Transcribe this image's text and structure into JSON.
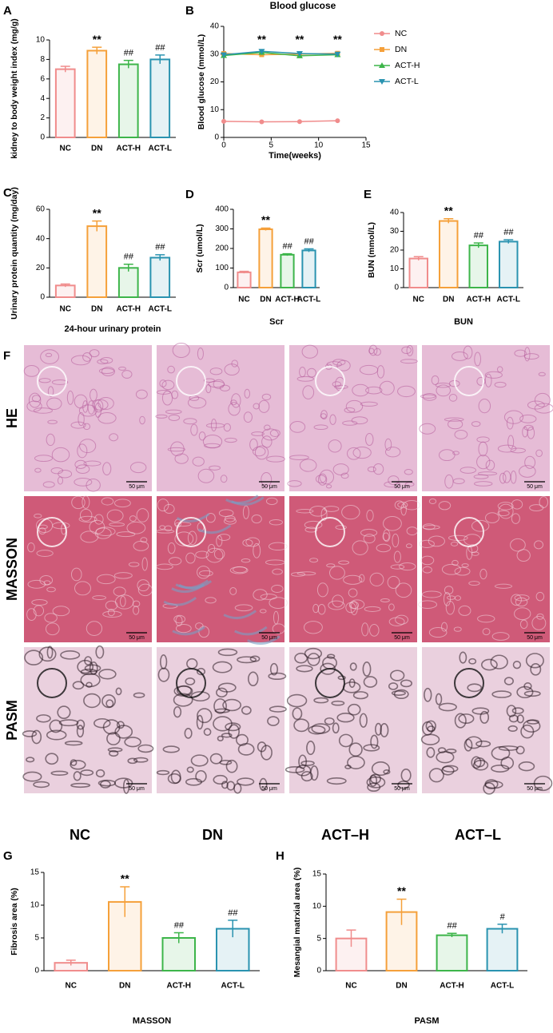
{
  "chart_data": [
    {
      "type": "bar",
      "panel": "A",
      "ylabel": "kidney to body weight index (mg/g)",
      "categories": [
        "NC",
        "DN",
        "ACT-H",
        "ACT-L"
      ],
      "values": [
        7.0,
        8.9,
        7.5,
        8.0
      ],
      "errors": [
        0.3,
        0.35,
        0.4,
        0.45
      ],
      "annotations": [
        null,
        "**",
        "##",
        "##"
      ],
      "colors": [
        "#f08c8c",
        "#f5a03a",
        "#3db54a",
        "#2a93b0"
      ],
      "ylim": [
        0,
        10
      ],
      "yticks": [
        0,
        2,
        4,
        6,
        8,
        10
      ]
    },
    {
      "type": "line",
      "panel": "B",
      "title": "Blood glucose",
      "xlabel": "Time(weeks)",
      "ylabel": "Blood glucose (mmol/L)",
      "x": [
        0,
        4,
        8,
        12
      ],
      "annotations": [
        null,
        "**",
        "**",
        "**"
      ],
      "series": [
        {
          "name": "NC",
          "color": "#f08c8c",
          "values": [
            5.8,
            5.6,
            5.7,
            6.0
          ]
        },
        {
          "name": "DN",
          "color": "#f5a03a",
          "values": [
            30.2,
            29.8,
            30.0,
            30.3
          ]
        },
        {
          "name": "ACT-H",
          "color": "#3db54a",
          "values": [
            29.5,
            30.6,
            29.4,
            29.8
          ]
        },
        {
          "name": "ACT-L",
          "color": "#2a93b0",
          "values": [
            29.8,
            31.0,
            30.2,
            30.0
          ]
        }
      ],
      "xlim": [
        0,
        15
      ],
      "xticks": [
        0,
        5,
        10,
        15
      ],
      "ylim": [
        0,
        40
      ],
      "yticks": [
        0,
        10,
        20,
        30,
        40
      ],
      "legend": "right"
    },
    {
      "type": "bar",
      "panel": "C",
      "ylabel": "Urinary protein quantity (mg/day)",
      "xlabel": "24-hour urinary protein",
      "categories": [
        "NC",
        "DN",
        "ACT-H",
        "ACT-L"
      ],
      "values": [
        8,
        48.5,
        20,
        27
      ],
      "errors": [
        1,
        3.5,
        2.5,
        2
      ],
      "annotations": [
        null,
        "**",
        "##",
        "##"
      ],
      "colors": [
        "#f08c8c",
        "#f5a03a",
        "#3db54a",
        "#2a93b0"
      ],
      "ylim": [
        0,
        60
      ],
      "yticks": [
        0,
        20,
        40,
        60
      ]
    },
    {
      "type": "bar",
      "panel": "D",
      "ylabel": "Scr (umol/L)",
      "xlabel": "Scr",
      "categories": [
        "NC",
        "DN",
        "ACT-H",
        "ACT-L"
      ],
      "values": [
        78,
        298,
        168,
        190
      ],
      "errors": [
        5,
        6,
        5,
        8
      ],
      "annotations": [
        null,
        "**",
        "##",
        "##"
      ],
      "colors": [
        "#f08c8c",
        "#f5a03a",
        "#3db54a",
        "#2a93b0"
      ],
      "ylim": [
        0,
        400
      ],
      "yticks": [
        0,
        100,
        200,
        300,
        400
      ]
    },
    {
      "type": "bar",
      "panel": "E",
      "ylabel": "BUN (mmol/L)",
      "xlabel": "BUN",
      "categories": [
        "NC",
        "DN",
        "ACT-H",
        "ACT-L"
      ],
      "values": [
        15.5,
        35.5,
        22.5,
        24.5
      ],
      "errors": [
        1,
        1.2,
        1.3,
        1
      ],
      "annotations": [
        null,
        "**",
        "##",
        "##"
      ],
      "colors": [
        "#f08c8c",
        "#f5a03a",
        "#3db54a",
        "#2a93b0"
      ],
      "ylim": [
        0,
        40
      ],
      "yticks": [
        0,
        10,
        20,
        30,
        40
      ]
    },
    {
      "type": "bar",
      "panel": "G",
      "ylabel": "Fibrosis area (%)",
      "xlabel": "MASSON",
      "categories": [
        "NC",
        "DN",
        "ACT-H",
        "ACT-L"
      ],
      "values": [
        1.2,
        10.5,
        5.0,
        6.4
      ],
      "errors": [
        0.4,
        2.3,
        0.8,
        1.3
      ],
      "annotations": [
        null,
        "**",
        "##",
        "##"
      ],
      "colors": [
        "#f08c8c",
        "#f5a03a",
        "#3db54a",
        "#2a93b0"
      ],
      "ylim": [
        0,
        15
      ],
      "yticks": [
        0,
        5,
        10,
        15
      ]
    },
    {
      "type": "bar",
      "panel": "H",
      "ylabel": "Mesangial matrxial area (%)",
      "xlabel": "PASM",
      "categories": [
        "NC",
        "DN",
        "ACT-H",
        "ACT-L"
      ],
      "values": [
        5.0,
        9.1,
        5.5,
        6.5
      ],
      "errors": [
        1.3,
        2.0,
        0.3,
        0.7
      ],
      "annotations": [
        null,
        "**",
        "##",
        "#"
      ],
      "colors": [
        "#f08c8c",
        "#f5a03a",
        "#3db54a",
        "#2a93b0"
      ],
      "ylim": [
        0,
        15
      ],
      "yticks": [
        0,
        5,
        10,
        15
      ]
    }
  ],
  "micrographs": {
    "panel": "F",
    "rows": [
      "HE",
      "MASSON",
      "PASM"
    ],
    "columns": [
      "NC",
      "DN",
      "ACT–H",
      "ACT–L"
    ],
    "scale_bar": "50 μm"
  }
}
